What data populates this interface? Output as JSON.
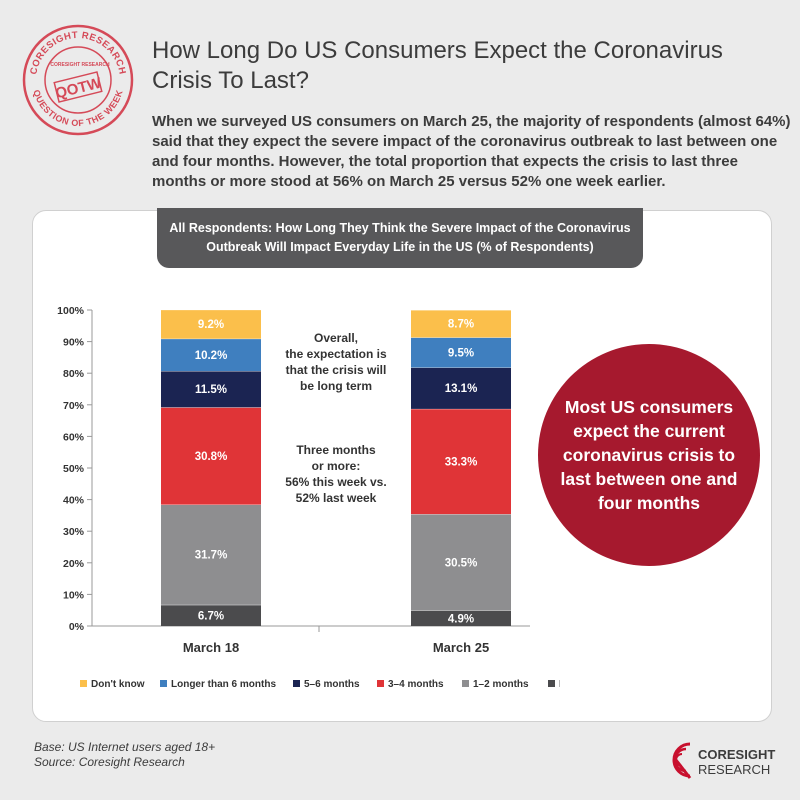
{
  "stamp": {
    "top_text": "CORESIGHT RESEARCH",
    "bottom_text": "QUESTION OF THE WEEK",
    "center": "QOTW",
    "brand_small": "CORESIGHT RESEARCH"
  },
  "header": {
    "title_line1": "How Long Do US Consumers Expect the Coronavirus",
    "title_line2": "Crisis To Last?",
    "intro": "When we surveyed US consumers on March 25, the majority of respondents (almost 64%) said that they expect the severe impact of the coronavirus outbreak to last between one and four months. However, the total proportion that expects the crisis to last three months or more stood at 56% on March 25 versus 52% one week earlier."
  },
  "banner": {
    "line1": "All Respondents: How Long They Think the Severe Impact of the Coronavirus",
    "line2": "Outbreak Will Impact Everyday Life in the US (% of Respondents)"
  },
  "chart_data": {
    "type": "bar",
    "stacked": true,
    "categories": [
      "March 18",
      "March 25"
    ],
    "series": [
      {
        "name": "Less than a month",
        "values": [
          6.7,
          4.9
        ],
        "color": "#4b4b4d"
      },
      {
        "name": "1–2 months",
        "values": [
          31.7,
          30.5
        ],
        "color": "#8e8e90"
      },
      {
        "name": "3–4 months",
        "values": [
          30.8,
          33.3
        ],
        "color": "#e03437"
      },
      {
        "name": "5–6 months",
        "values": [
          11.5,
          13.1
        ],
        "color": "#1b2452"
      },
      {
        "name": "Longer than 6 months",
        "values": [
          10.2,
          9.5
        ],
        "color": "#3f7fbf"
      },
      {
        "name": "Don't know",
        "values": [
          9.2,
          8.7
        ],
        "color": "#fbbf4b"
      }
    ],
    "ylim": [
      0,
      100
    ],
    "yticks": [
      "0%",
      "10%",
      "20%",
      "30%",
      "40%",
      "50%",
      "60%",
      "70%",
      "80%",
      "90%",
      "100%"
    ],
    "legend_order": [
      "Don't know",
      "Longer than 6 months",
      "5–6 months",
      "3–4 months",
      "1–2 months",
      "Less than a month"
    ],
    "legend_position": "bottom",
    "grid": false
  },
  "annotations": {
    "overall": [
      "Overall,",
      "the expectation is",
      "that the crisis will",
      "be long term"
    ],
    "three_months": [
      "Three months",
      "or more:",
      "56% this week vs.",
      "52% last week"
    ]
  },
  "callout": {
    "text": "Most US consumers expect the current coronavirus crisis to last between one and four months"
  },
  "footer": {
    "base": "Base: US Internet users aged 18+",
    "source": "Source: Coresight Research",
    "logo_line1": "CORESIGHT",
    "logo_line2": "RESEARCH"
  }
}
